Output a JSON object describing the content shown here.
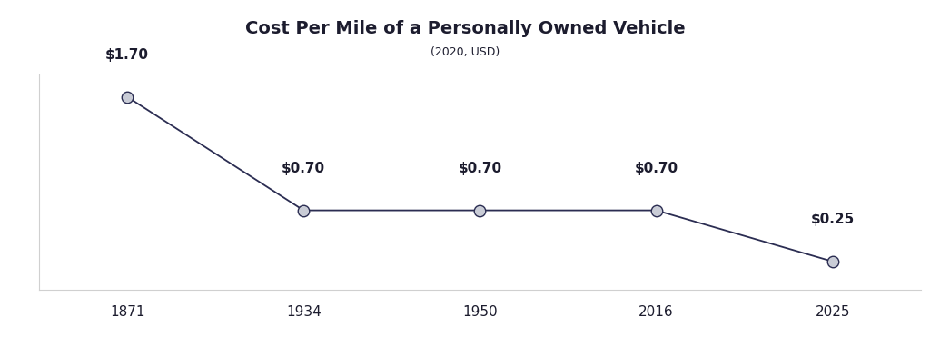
{
  "chart_data": {
    "type": "line",
    "title": "Cost Per Mile of a Personally Owned Vehicle",
    "subtitle": "(2020, USD)",
    "categories": [
      "1871",
      "1934",
      "1950",
      "2016",
      "2025"
    ],
    "values": [
      1.7,
      0.7,
      0.7,
      0.7,
      0.25
    ],
    "value_labels": [
      "$1.70",
      "$0.70",
      "$0.70",
      "$0.70",
      "$0.25"
    ],
    "data_labels": true,
    "color": "#2b2d52",
    "marker": "o",
    "line_style": "solid",
    "ylim": [
      0,
      1.9
    ],
    "yticks": [],
    "tick_labels": "x",
    "grid": false
  }
}
